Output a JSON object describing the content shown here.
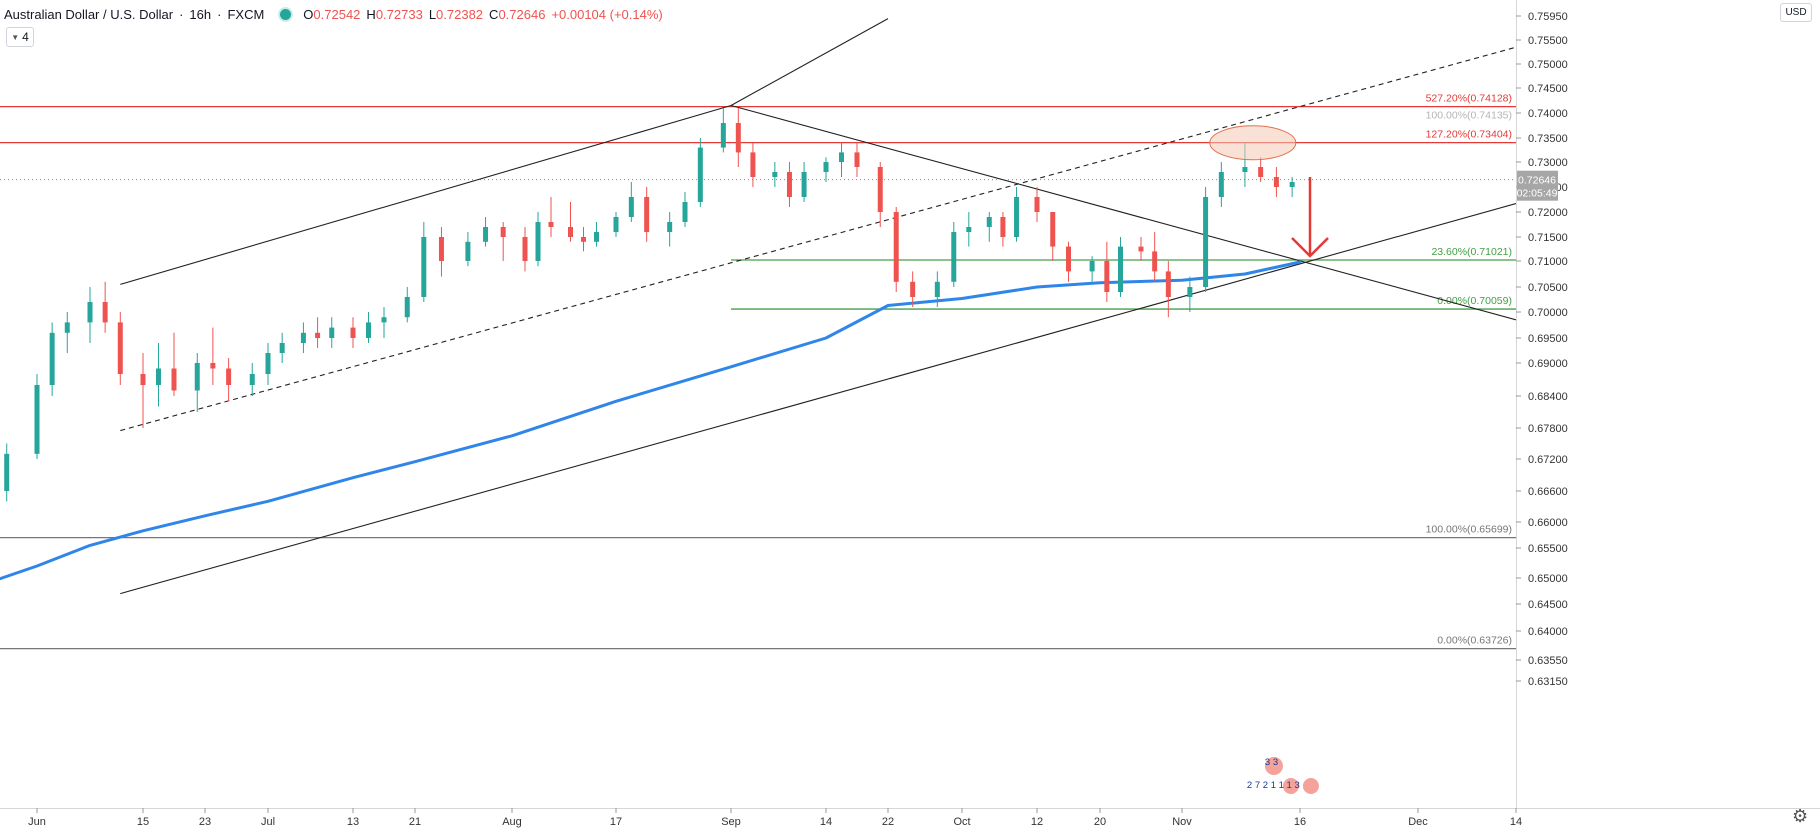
{
  "header": {
    "symbol": "Australian Dollar / U.S. Dollar",
    "interval": "16h",
    "source": "FXCM",
    "ohlc": [
      {
        "label": "O",
        "value": "0.72542"
      },
      {
        "label": "H",
        "value": "0.72733"
      },
      {
        "label": "L",
        "value": "0.72382"
      },
      {
        "label": "C",
        "value": "0.72646"
      }
    ],
    "change": "+0.00104 (+0.14%)",
    "interval_button": "4",
    "currency": "USD"
  },
  "colors": {
    "up": "#26a69a",
    "down": "#ef5350",
    "ma": "#2f86e8",
    "fib_red": "#e53935",
    "fib_green": "#43a047",
    "fib_gray": "#777777",
    "trend": "#222222",
    "arrow": "#e53935",
    "price_label_bg": "#a6a6a6",
    "ellipse_fill": "#f6c9b4",
    "ellipse_stroke": "#e07050"
  },
  "chart_data": {
    "type": "candlestick",
    "symbol": "AUDUSD",
    "yaxis": {
      "ticks": [
        "0.75950",
        "0.75500",
        "0.75000",
        "0.74500",
        "0.74000",
        "0.73500",
        "0.73000",
        "0.72500",
        "0.72000",
        "0.71500",
        "0.71000",
        "0.70500",
        "0.70000",
        "0.69500",
        "0.69000",
        "0.68400",
        "0.67800",
        "0.67200",
        "0.66600",
        "0.66000",
        "0.65500",
        "0.65000",
        "0.64500",
        "0.64000",
        "0.63550",
        "0.63150"
      ]
    },
    "xaxis": {
      "ticks": [
        {
          "label": "Jun",
          "date": "2020-06-01"
        },
        {
          "label": "15",
          "date": "2020-06-15"
        },
        {
          "label": "23",
          "date": "2020-06-23"
        },
        {
          "label": "Jul",
          "date": "2020-07-01"
        },
        {
          "label": "13",
          "date": "2020-07-13"
        },
        {
          "label": "21",
          "date": "2020-07-21"
        },
        {
          "label": "Aug",
          "date": "2020-08-01"
        },
        {
          "label": "17",
          "date": "2020-08-17"
        },
        {
          "label": "Sep",
          "date": "2020-09-01"
        },
        {
          "label": "14",
          "date": "2020-09-14"
        },
        {
          "label": "22",
          "date": "2020-09-22"
        },
        {
          "label": "Oct",
          "date": "2020-10-01"
        },
        {
          "label": "12",
          "date": "2020-10-12"
        },
        {
          "label": "20",
          "date": "2020-10-20"
        },
        {
          "label": "Nov",
          "date": "2020-11-01"
        },
        {
          "label": "16",
          "date": "2020-11-16"
        },
        {
          "label": "Dec",
          "date": "2020-12-01"
        },
        {
          "label": "14",
          "date": "2020-12-14"
        }
      ]
    },
    "last_price": {
      "value": 0.72646,
      "label": "0.72646",
      "countdown": "02:05:49"
    },
    "series": [
      {
        "name": "ma",
        "type": "line",
        "points": [
          {
            "date": "2020-05-25",
            "value": 0.6488
          },
          {
            "date": "2020-06-01",
            "value": 0.652
          },
          {
            "date": "2020-06-08",
            "value": 0.6555
          },
          {
            "date": "2020-06-15",
            "value": 0.6583
          },
          {
            "date": "2020-06-23",
            "value": 0.6612
          },
          {
            "date": "2020-07-01",
            "value": 0.664
          },
          {
            "date": "2020-07-13",
            "value": 0.6685
          },
          {
            "date": "2020-07-21",
            "value": 0.6715
          },
          {
            "date": "2020-08-01",
            "value": 0.6765
          },
          {
            "date": "2020-08-17",
            "value": 0.683
          },
          {
            "date": "2020-09-01",
            "value": 0.6893
          },
          {
            "date": "2020-09-14",
            "value": 0.695
          },
          {
            "date": "2020-09-22",
            "value": 0.7013
          },
          {
            "date": "2020-10-01",
            "value": 0.7027
          },
          {
            "date": "2020-10-12",
            "value": 0.705
          },
          {
            "date": "2020-10-20",
            "value": 0.7058
          },
          {
            "date": "2020-11-01",
            "value": 0.7063
          },
          {
            "date": "2020-11-09",
            "value": 0.7075
          },
          {
            "date": "2020-11-16",
            "value": 0.7098
          }
        ]
      }
    ],
    "candles": [
      {
        "date": "2020-05-25",
        "open": 0.662,
        "high": 0.668,
        "low": 0.66,
        "close": 0.666
      },
      {
        "date": "2020-05-28",
        "open": 0.666,
        "high": 0.675,
        "low": 0.664,
        "close": 0.673
      },
      {
        "date": "2020-06-01",
        "open": 0.673,
        "high": 0.688,
        "low": 0.672,
        "close": 0.686
      },
      {
        "date": "2020-06-03",
        "open": 0.686,
        "high": 0.698,
        "low": 0.684,
        "close": 0.696
      },
      {
        "date": "2020-06-05",
        "open": 0.696,
        "high": 0.7,
        "low": 0.692,
        "close": 0.698
      },
      {
        "date": "2020-06-08",
        "open": 0.698,
        "high": 0.705,
        "low": 0.694,
        "close": 0.702
      },
      {
        "date": "2020-06-10",
        "open": 0.702,
        "high": 0.706,
        "low": 0.696,
        "close": 0.698
      },
      {
        "date": "2020-06-12",
        "open": 0.698,
        "high": 0.7,
        "low": 0.686,
        "close": 0.688
      },
      {
        "date": "2020-06-15",
        "open": 0.688,
        "high": 0.692,
        "low": 0.678,
        "close": 0.686
      },
      {
        "date": "2020-06-17",
        "open": 0.686,
        "high": 0.694,
        "low": 0.682,
        "close": 0.689
      },
      {
        "date": "2020-06-19",
        "open": 0.689,
        "high": 0.696,
        "low": 0.684,
        "close": 0.685
      },
      {
        "date": "2020-06-22",
        "open": 0.685,
        "high": 0.692,
        "low": 0.681,
        "close": 0.69
      },
      {
        "date": "2020-06-24",
        "open": 0.69,
        "high": 0.697,
        "low": 0.686,
        "close": 0.689
      },
      {
        "date": "2020-06-26",
        "open": 0.689,
        "high": 0.691,
        "low": 0.683,
        "close": 0.686
      },
      {
        "date": "2020-06-29",
        "open": 0.686,
        "high": 0.69,
        "low": 0.684,
        "close": 0.688
      },
      {
        "date": "2020-07-01",
        "open": 0.688,
        "high": 0.694,
        "low": 0.686,
        "close": 0.692
      },
      {
        "date": "2020-07-03",
        "open": 0.692,
        "high": 0.696,
        "low": 0.69,
        "close": 0.694
      },
      {
        "date": "2020-07-06",
        "open": 0.694,
        "high": 0.698,
        "low": 0.692,
        "close": 0.696
      },
      {
        "date": "2020-07-08",
        "open": 0.696,
        "high": 0.699,
        "low": 0.693,
        "close": 0.695
      },
      {
        "date": "2020-07-10",
        "open": 0.695,
        "high": 0.699,
        "low": 0.693,
        "close": 0.697
      },
      {
        "date": "2020-07-13",
        "open": 0.697,
        "high": 0.699,
        "low": 0.693,
        "close": 0.695
      },
      {
        "date": "2020-07-15",
        "open": 0.695,
        "high": 0.7,
        "low": 0.694,
        "close": 0.698
      },
      {
        "date": "2020-07-17",
        "open": 0.698,
        "high": 0.701,
        "low": 0.695,
        "close": 0.699
      },
      {
        "date": "2020-07-20",
        "open": 0.699,
        "high": 0.705,
        "low": 0.698,
        "close": 0.703
      },
      {
        "date": "2020-07-22",
        "open": 0.703,
        "high": 0.718,
        "low": 0.702,
        "close": 0.715
      },
      {
        "date": "2020-07-24",
        "open": 0.715,
        "high": 0.717,
        "low": 0.707,
        "close": 0.71
      },
      {
        "date": "2020-07-27",
        "open": 0.71,
        "high": 0.716,
        "low": 0.709,
        "close": 0.714
      },
      {
        "date": "2020-07-29",
        "open": 0.714,
        "high": 0.719,
        "low": 0.713,
        "close": 0.717
      },
      {
        "date": "2020-07-31",
        "open": 0.717,
        "high": 0.718,
        "low": 0.71,
        "close": 0.715
      },
      {
        "date": "2020-08-03",
        "open": 0.715,
        "high": 0.717,
        "low": 0.708,
        "close": 0.71
      },
      {
        "date": "2020-08-05",
        "open": 0.71,
        "high": 0.72,
        "low": 0.709,
        "close": 0.718
      },
      {
        "date": "2020-08-07",
        "open": 0.718,
        "high": 0.723,
        "low": 0.715,
        "close": 0.717
      },
      {
        "date": "2020-08-10",
        "open": 0.717,
        "high": 0.722,
        "low": 0.714,
        "close": 0.715
      },
      {
        "date": "2020-08-12",
        "open": 0.715,
        "high": 0.717,
        "low": 0.712,
        "close": 0.714
      },
      {
        "date": "2020-08-14",
        "open": 0.714,
        "high": 0.718,
        "low": 0.713,
        "close": 0.716
      },
      {
        "date": "2020-08-17",
        "open": 0.716,
        "high": 0.72,
        "low": 0.715,
        "close": 0.719
      },
      {
        "date": "2020-08-19",
        "open": 0.719,
        "high": 0.726,
        "low": 0.718,
        "close": 0.723
      },
      {
        "date": "2020-08-21",
        "open": 0.723,
        "high": 0.725,
        "low": 0.714,
        "close": 0.716
      },
      {
        "date": "2020-08-24",
        "open": 0.716,
        "high": 0.72,
        "low": 0.713,
        "close": 0.718
      },
      {
        "date": "2020-08-26",
        "open": 0.718,
        "high": 0.724,
        "low": 0.717,
        "close": 0.722
      },
      {
        "date": "2020-08-28",
        "open": 0.722,
        "high": 0.735,
        "low": 0.721,
        "close": 0.733
      },
      {
        "date": "2020-08-31",
        "open": 0.733,
        "high": 0.741,
        "low": 0.732,
        "close": 0.738
      },
      {
        "date": "2020-09-02",
        "open": 0.738,
        "high": 0.741,
        "low": 0.729,
        "close": 0.732
      },
      {
        "date": "2020-09-04",
        "open": 0.732,
        "high": 0.734,
        "low": 0.725,
        "close": 0.727
      },
      {
        "date": "2020-09-07",
        "open": 0.727,
        "high": 0.73,
        "low": 0.725,
        "close": 0.728
      },
      {
        "date": "2020-09-09",
        "open": 0.728,
        "high": 0.73,
        "low": 0.721,
        "close": 0.723
      },
      {
        "date": "2020-09-11",
        "open": 0.723,
        "high": 0.73,
        "low": 0.722,
        "close": 0.728
      },
      {
        "date": "2020-09-14",
        "open": 0.728,
        "high": 0.731,
        "low": 0.726,
        "close": 0.73
      },
      {
        "date": "2020-09-16",
        "open": 0.73,
        "high": 0.734,
        "low": 0.727,
        "close": 0.732
      },
      {
        "date": "2020-09-18",
        "open": 0.732,
        "high": 0.734,
        "low": 0.727,
        "close": 0.729
      },
      {
        "date": "2020-09-21",
        "open": 0.729,
        "high": 0.73,
        "low": 0.717,
        "close": 0.72
      },
      {
        "date": "2020-09-23",
        "open": 0.72,
        "high": 0.721,
        "low": 0.704,
        "close": 0.706
      },
      {
        "date": "2020-09-25",
        "open": 0.706,
        "high": 0.708,
        "low": 0.701,
        "close": 0.703
      },
      {
        "date": "2020-09-28",
        "open": 0.703,
        "high": 0.708,
        "low": 0.701,
        "close": 0.706
      },
      {
        "date": "2020-09-30",
        "open": 0.706,
        "high": 0.718,
        "low": 0.705,
        "close": 0.716
      },
      {
        "date": "2020-10-02",
        "open": 0.716,
        "high": 0.72,
        "low": 0.713,
        "close": 0.717
      },
      {
        "date": "2020-10-05",
        "open": 0.717,
        "high": 0.72,
        "low": 0.714,
        "close": 0.719
      },
      {
        "date": "2020-10-07",
        "open": 0.719,
        "high": 0.72,
        "low": 0.713,
        "close": 0.715
      },
      {
        "date": "2020-10-09",
        "open": 0.715,
        "high": 0.725,
        "low": 0.714,
        "close": 0.723
      },
      {
        "date": "2020-10-12",
        "open": 0.723,
        "high": 0.725,
        "low": 0.718,
        "close": 0.72
      },
      {
        "date": "2020-10-14",
        "open": 0.72,
        "high": 0.72,
        "low": 0.71,
        "close": 0.713
      },
      {
        "date": "2020-10-16",
        "open": 0.713,
        "high": 0.714,
        "low": 0.706,
        "close": 0.708
      },
      {
        "date": "2020-10-19",
        "open": 0.708,
        "high": 0.711,
        "low": 0.706,
        "close": 0.71
      },
      {
        "date": "2020-10-21",
        "open": 0.71,
        "high": 0.714,
        "low": 0.702,
        "close": 0.704
      },
      {
        "date": "2020-10-23",
        "open": 0.704,
        "high": 0.715,
        "low": 0.703,
        "close": 0.713
      },
      {
        "date": "2020-10-26",
        "open": 0.713,
        "high": 0.715,
        "low": 0.71,
        "close": 0.712
      },
      {
        "date": "2020-10-28",
        "open": 0.712,
        "high": 0.716,
        "low": 0.706,
        "close": 0.708
      },
      {
        "date": "2020-10-30",
        "open": 0.708,
        "high": 0.71,
        "low": 0.699,
        "close": 0.703
      },
      {
        "date": "2020-11-02",
        "open": 0.703,
        "high": 0.707,
        "low": 0.7,
        "close": 0.705
      },
      {
        "date": "2020-11-04",
        "open": 0.705,
        "high": 0.725,
        "low": 0.704,
        "close": 0.723
      },
      {
        "date": "2020-11-06",
        "open": 0.723,
        "high": 0.73,
        "low": 0.721,
        "close": 0.728
      },
      {
        "date": "2020-11-09",
        "open": 0.728,
        "high": 0.734,
        "low": 0.725,
        "close": 0.729
      },
      {
        "date": "2020-11-11",
        "open": 0.729,
        "high": 0.731,
        "low": 0.726,
        "close": 0.727
      },
      {
        "date": "2020-11-13",
        "open": 0.727,
        "high": 0.729,
        "low": 0.723,
        "close": 0.725
      },
      {
        "date": "2020-11-15",
        "open": 0.725,
        "high": 0.727,
        "low": 0.723,
        "close": 0.726
      }
    ],
    "fib_levels": [
      {
        "group": "upper",
        "label": "527.20%(0.74128)",
        "value": 0.74128,
        "color": "red"
      },
      {
        "group": "upper",
        "label": "100.00%(0.74135)",
        "value": 0.74135,
        "color": "gray"
      },
      {
        "group": "upper",
        "label": "127.20%(0.73404)",
        "value": 0.73404,
        "color": "red"
      },
      {
        "group": "middle",
        "label": "23.60%(0.71021)",
        "value": 0.71021,
        "color": "green"
      },
      {
        "group": "middle",
        "label": "0.00%(0.70059)",
        "value": 0.70059,
        "color": "green"
      },
      {
        "group": "lower",
        "label": "100.00%(0.65699)",
        "value": 0.65699,
        "color": "gray"
      },
      {
        "group": "lower",
        "label": "0.00%(0.63726)",
        "value": 0.63726,
        "color": "gray"
      }
    ],
    "trendlines": [
      {
        "name": "channel-upper",
        "style": "solid",
        "from": {
          "date": "2020-06-12",
          "value": 0.7055
        },
        "to": {
          "date": "2020-09-01",
          "value": 0.7415
        }
      },
      {
        "name": "channel-upper-ext",
        "style": "solid",
        "from": {
          "date": "2020-09-01",
          "value": 0.7415
        },
        "to": {
          "date": "2020-09-22",
          "value": 0.759
        }
      },
      {
        "name": "channel-mid",
        "style": "dashed",
        "from": {
          "date": "2020-06-12",
          "value": 0.6775
        },
        "to": {
          "date": "2020-12-14",
          "value": 0.7535
        }
      },
      {
        "name": "channel-lower",
        "style": "solid",
        "from": {
          "date": "2020-06-12",
          "value": 0.647
        },
        "to": {
          "date": "2020-12-14",
          "value": 0.7217
        }
      },
      {
        "name": "downtrend",
        "style": "solid",
        "from": {
          "date": "2020-09-01",
          "value": 0.7415
        },
        "to": {
          "date": "2020-12-14",
          "value": 0.6985
        }
      }
    ],
    "annotations": [
      {
        "type": "ellipse",
        "date": "2020-11-10",
        "value": 0.734
      },
      {
        "type": "arrow",
        "direction": "down",
        "date": "2020-11-16",
        "from": 0.727,
        "to": 0.71
      }
    ],
    "fxmarkers": {
      "lines": [
        "3  3",
        "2  7 2 1 1 1 3"
      ]
    }
  }
}
